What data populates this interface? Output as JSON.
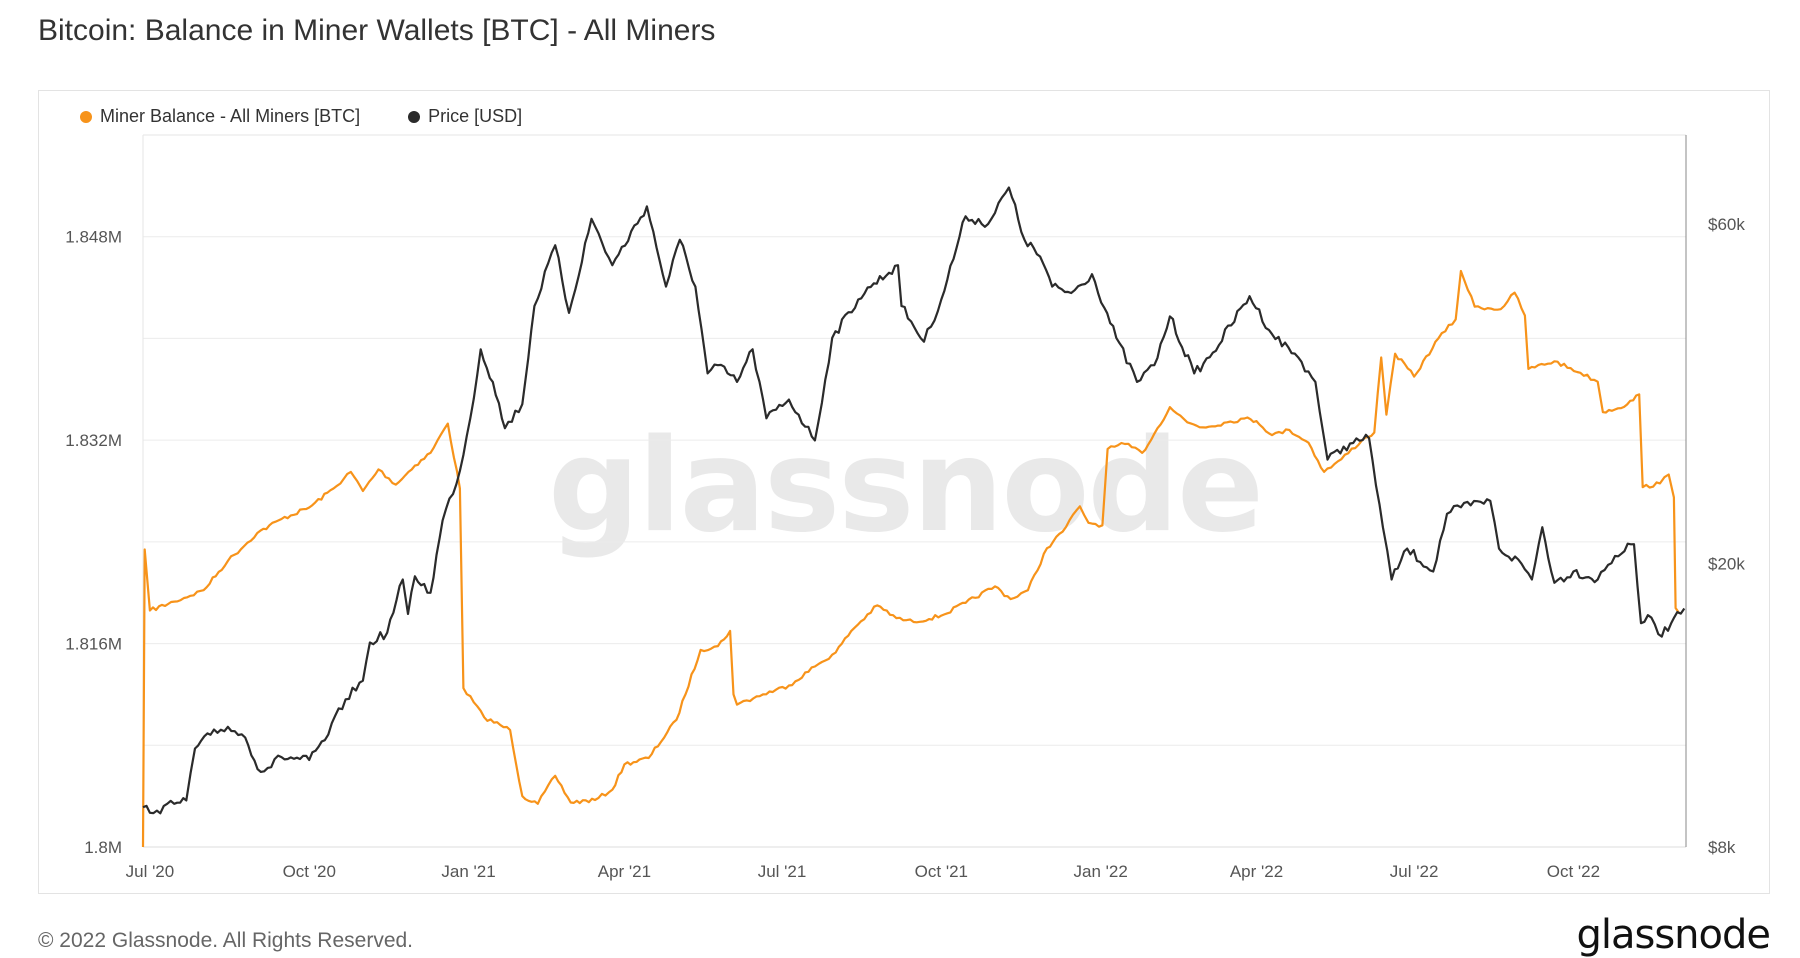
{
  "title": "Bitcoin: Balance in Miner Wallets [BTC] - All Miners",
  "footer": {
    "copyright": "© 2022 Glassnode. All Rights Reserved.",
    "logo": "glassnode"
  },
  "watermark": "glassnode",
  "colors": {
    "balance": "#f7931a",
    "price": "#2b2b2b",
    "grid": "#ececec"
  },
  "chart_data": {
    "type": "line",
    "legend_position": "top-left",
    "grid": true,
    "x_ticks": [
      "Jul '20",
      "Oct '20",
      "Jan '21",
      "Apr '21",
      "Jul '21",
      "Oct '21",
      "Jan '22",
      "Apr '22",
      "Jul '22",
      "Oct '22"
    ],
    "x_range": [
      "2020-06-27",
      "2022-12-05"
    ],
    "y_left": {
      "ticks": [
        "1.8M",
        "1.816M",
        "1.832M",
        "1.848M"
      ],
      "tick_values": [
        1800000,
        1816000,
        1832000,
        1848000
      ],
      "range": [
        1800000,
        1856000
      ]
    },
    "y_right": {
      "ticks": [
        "$8k",
        "$20k",
        "$60k"
      ],
      "tick_values": [
        8000,
        20000,
        60000
      ],
      "scale": "log",
      "range": [
        8000,
        80000
      ]
    },
    "series": [
      {
        "name": "Miner Balance - All Miners [BTC]",
        "axis": "left",
        "points": [
          [
            "2020-06-27",
            1800000
          ],
          [
            "2020-06-28",
            1823400
          ],
          [
            "2020-07-01",
            1818600
          ],
          [
            "2020-07-15",
            1819300
          ],
          [
            "2020-08-01",
            1820200
          ],
          [
            "2020-08-15",
            1822500
          ],
          [
            "2020-09-01",
            1824700
          ],
          [
            "2020-09-15",
            1825800
          ],
          [
            "2020-10-01",
            1826700
          ],
          [
            "2020-10-15",
            1828200
          ],
          [
            "2020-10-25",
            1829500
          ],
          [
            "2020-11-01",
            1828000
          ],
          [
            "2020-11-10",
            1829700
          ],
          [
            "2020-11-20",
            1828500
          ],
          [
            "2020-12-01",
            1830000
          ],
          [
            "2020-12-10",
            1831000
          ],
          [
            "2020-12-20",
            1833300
          ],
          [
            "2020-12-27",
            1828200
          ],
          [
            "2020-12-29",
            1812500
          ],
          [
            "2021-01-10",
            1810200
          ],
          [
            "2021-01-25",
            1809200
          ],
          [
            "2021-02-01",
            1804000
          ],
          [
            "2021-02-10",
            1803400
          ],
          [
            "2021-02-20",
            1805600
          ],
          [
            "2021-03-01",
            1803500
          ],
          [
            "2021-03-15",
            1803700
          ],
          [
            "2021-03-25",
            1804500
          ],
          [
            "2021-04-01",
            1806500
          ],
          [
            "2021-04-15",
            1807000
          ],
          [
            "2021-05-01",
            1810000
          ],
          [
            "2021-05-15",
            1815500
          ],
          [
            "2021-05-25",
            1815800
          ],
          [
            "2021-06-01",
            1817000
          ],
          [
            "2021-06-03",
            1812000
          ],
          [
            "2021-06-05",
            1811200
          ],
          [
            "2021-06-20",
            1812000
          ],
          [
            "2021-07-05",
            1812700
          ],
          [
            "2021-07-20",
            1814200
          ],
          [
            "2021-08-01",
            1815300
          ],
          [
            "2021-08-10",
            1817000
          ],
          [
            "2021-08-25",
            1819000
          ],
          [
            "2021-09-05",
            1818000
          ],
          [
            "2021-09-15",
            1817700
          ],
          [
            "2021-10-01",
            1818200
          ],
          [
            "2021-10-15",
            1819200
          ],
          [
            "2021-11-01",
            1820500
          ],
          [
            "2021-11-10",
            1819500
          ],
          [
            "2021-11-20",
            1820200
          ],
          [
            "2021-12-01",
            1823500
          ],
          [
            "2021-12-10",
            1824800
          ],
          [
            "2021-12-20",
            1826800
          ],
          [
            "2021-12-25",
            1825500
          ],
          [
            "2022-01-02",
            1825300
          ],
          [
            "2022-01-05",
            1831300
          ],
          [
            "2022-01-15",
            1831700
          ],
          [
            "2022-01-25",
            1831000
          ],
          [
            "2022-02-01",
            1832500
          ],
          [
            "2022-02-10",
            1834600
          ],
          [
            "2022-02-20",
            1833400
          ],
          [
            "2022-03-01",
            1833000
          ],
          [
            "2022-03-15",
            1833400
          ],
          [
            "2022-03-25",
            1833700
          ],
          [
            "2022-04-01",
            1833500
          ],
          [
            "2022-04-10",
            1832400
          ],
          [
            "2022-04-20",
            1832800
          ],
          [
            "2022-05-01",
            1831800
          ],
          [
            "2022-05-10",
            1829500
          ],
          [
            "2022-05-20",
            1830500
          ],
          [
            "2022-06-01",
            1832000
          ],
          [
            "2022-06-08",
            1832600
          ],
          [
            "2022-06-12",
            1838500
          ],
          [
            "2022-06-15",
            1834000
          ],
          [
            "2022-06-20",
            1838800
          ],
          [
            "2022-07-01",
            1837000
          ],
          [
            "2022-07-15",
            1840000
          ],
          [
            "2022-07-25",
            1841500
          ],
          [
            "2022-07-28",
            1845300
          ],
          [
            "2022-08-05",
            1842500
          ],
          [
            "2022-08-20",
            1842300
          ],
          [
            "2022-08-28",
            1843600
          ],
          [
            "2022-09-03",
            1841800
          ],
          [
            "2022-09-05",
            1837600
          ],
          [
            "2022-09-20",
            1838200
          ],
          [
            "2022-10-05",
            1837300
          ],
          [
            "2022-10-15",
            1836600
          ],
          [
            "2022-10-18",
            1834200
          ],
          [
            "2022-11-01",
            1834800
          ],
          [
            "2022-11-08",
            1835600
          ],
          [
            "2022-11-10",
            1828300
          ],
          [
            "2022-11-20",
            1828600
          ],
          [
            "2022-11-25",
            1829300
          ],
          [
            "2022-11-28",
            1827500
          ],
          [
            "2022-11-29",
            1818800
          ],
          [
            "2022-12-01",
            1818400
          ]
        ]
      },
      {
        "name": "Price [USD]",
        "axis": "right",
        "points": [
          [
            "2020-06-27",
            9100
          ],
          [
            "2020-07-05",
            9000
          ],
          [
            "2020-07-15",
            9200
          ],
          [
            "2020-07-22",
            9300
          ],
          [
            "2020-07-27",
            11000
          ],
          [
            "2020-08-05",
            11500
          ],
          [
            "2020-08-15",
            11800
          ],
          [
            "2020-08-25",
            11400
          ],
          [
            "2020-09-03",
            10200
          ],
          [
            "2020-09-15",
            10700
          ],
          [
            "2020-10-01",
            10600
          ],
          [
            "2020-10-10",
            11300
          ],
          [
            "2020-10-22",
            12900
          ],
          [
            "2020-11-01",
            13700
          ],
          [
            "2020-11-05",
            15500
          ],
          [
            "2020-11-15",
            16000
          ],
          [
            "2020-11-24",
            19000
          ],
          [
            "2020-11-27",
            17000
          ],
          [
            "2020-12-01",
            19200
          ],
          [
            "2020-12-10",
            18200
          ],
          [
            "2020-12-17",
            23000
          ],
          [
            "2020-12-27",
            27000
          ],
          [
            "2021-01-02",
            32000
          ],
          [
            "2021-01-08",
            40000
          ],
          [
            "2021-01-15",
            36000
          ],
          [
            "2021-01-22",
            31000
          ],
          [
            "2021-02-01",
            33500
          ],
          [
            "2021-02-08",
            46000
          ],
          [
            "2021-02-20",
            56000
          ],
          [
            "2021-02-28",
            45000
          ],
          [
            "2021-03-13",
            61000
          ],
          [
            "2021-03-25",
            52500
          ],
          [
            "2021-04-14",
            63500
          ],
          [
            "2021-04-25",
            49000
          ],
          [
            "2021-05-03",
            57000
          ],
          [
            "2021-05-12",
            49000
          ],
          [
            "2021-05-19",
            37000
          ],
          [
            "2021-05-25",
            38000
          ],
          [
            "2021-06-05",
            36000
          ],
          [
            "2021-06-14",
            40000
          ],
          [
            "2021-06-22",
            32000
          ],
          [
            "2021-07-05",
            34000
          ],
          [
            "2021-07-20",
            29800
          ],
          [
            "2021-07-30",
            41500
          ],
          [
            "2021-08-14",
            47000
          ],
          [
            "2021-08-23",
            49500
          ],
          [
            "2021-09-06",
            52500
          ],
          [
            "2021-09-08",
            46000
          ],
          [
            "2021-09-21",
            41000
          ],
          [
            "2021-10-01",
            47000
          ],
          [
            "2021-10-15",
            61500
          ],
          [
            "2021-10-28",
            60000
          ],
          [
            "2021-11-09",
            67500
          ],
          [
            "2021-11-18",
            57000
          ],
          [
            "2021-11-27",
            54000
          ],
          [
            "2021-12-04",
            49000
          ],
          [
            "2021-12-15",
            48000
          ],
          [
            "2021-12-27",
            51000
          ],
          [
            "2022-01-10",
            41500
          ],
          [
            "2022-01-22",
            36000
          ],
          [
            "2022-02-01",
            38000
          ],
          [
            "2022-02-10",
            44500
          ],
          [
            "2022-02-24",
            37000
          ],
          [
            "2022-03-05",
            39000
          ],
          [
            "2022-03-28",
            47500
          ],
          [
            "2022-04-10",
            42000
          ],
          [
            "2022-04-25",
            39000
          ],
          [
            "2022-05-05",
            36000
          ],
          [
            "2022-05-10",
            30000
          ],
          [
            "2022-05-12",
            28000
          ],
          [
            "2022-05-25",
            29500
          ],
          [
            "2022-06-05",
            30000
          ],
          [
            "2022-06-13",
            22500
          ],
          [
            "2022-06-18",
            19000
          ],
          [
            "2022-06-27",
            21000
          ],
          [
            "2022-07-12",
            19500
          ],
          [
            "2022-07-20",
            23500
          ],
          [
            "2022-07-28",
            24000
          ],
          [
            "2022-08-14",
            24500
          ],
          [
            "2022-08-19",
            21000
          ],
          [
            "2022-09-01",
            20000
          ],
          [
            "2022-09-07",
            19000
          ],
          [
            "2022-09-13",
            22500
          ],
          [
            "2022-09-20",
            18800
          ],
          [
            "2022-10-01",
            19500
          ],
          [
            "2022-10-15",
            19000
          ],
          [
            "2022-10-25",
            20500
          ],
          [
            "2022-11-05",
            21300
          ],
          [
            "2022-11-09",
            16500
          ],
          [
            "2022-11-15",
            16800
          ],
          [
            "2022-11-21",
            15800
          ],
          [
            "2022-11-30",
            17100
          ],
          [
            "2022-12-04",
            17300
          ]
        ]
      }
    ]
  }
}
